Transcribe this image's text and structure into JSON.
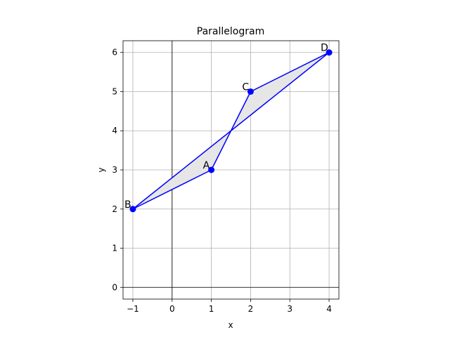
{
  "chart_data": {
    "type": "line",
    "title": "Parallelogram",
    "xlabel": "x",
    "ylabel": "y",
    "xlim": [
      -1.25,
      4.25
    ],
    "ylim": [
      -0.3,
      6.3
    ],
    "xticks": [
      -1,
      0,
      1,
      2,
      3,
      4
    ],
    "yticks": [
      0,
      1,
      2,
      3,
      4,
      5,
      6
    ],
    "grid": true,
    "points": [
      {
        "label": "A",
        "x": 1,
        "y": 3
      },
      {
        "label": "C",
        "x": 2,
        "y": 5
      },
      {
        "label": "D",
        "x": 4,
        "y": 6
      },
      {
        "label": "B",
        "x": -1,
        "y": 2
      }
    ],
    "polygon_order": [
      "A",
      "C",
      "D",
      "B"
    ],
    "line_color": "#0000ff",
    "fill_color": "#e6e6e6"
  }
}
